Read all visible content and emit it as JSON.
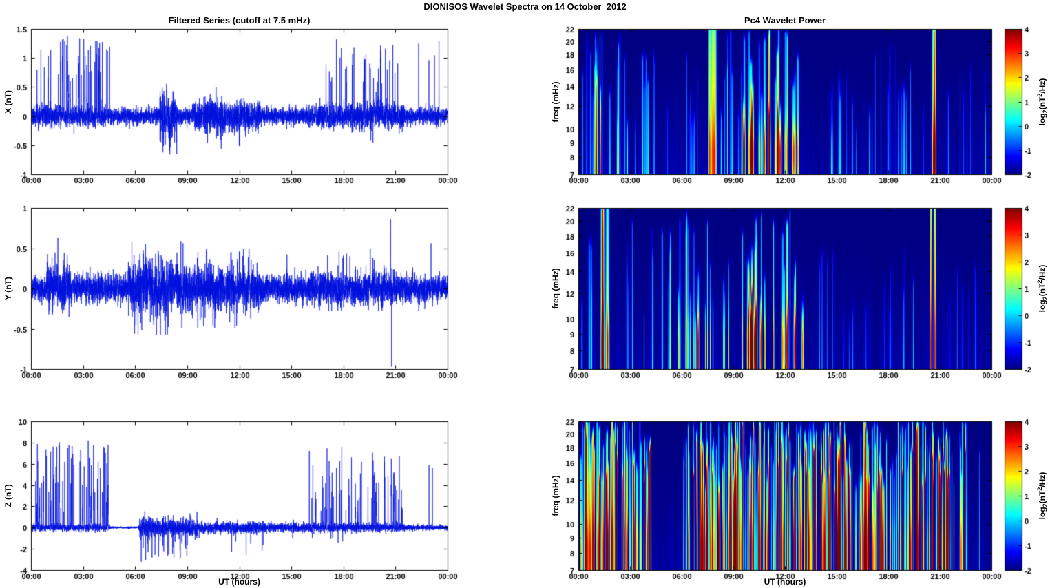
{
  "figure": {
    "suptitle": "DIONISOS Wavelet Spectra on 14 October  2012",
    "colorbar_label": {
      "p1": "log",
      "sub": "2",
      "p2": "(nT",
      "sup": "2",
      "p3": "/Hz)"
    },
    "background": "#ffffff",
    "axis_color": "#000000"
  },
  "chart_data": [
    {
      "id": "x-filtered-series",
      "type": "line",
      "title": "Filtered Series (cutoff at 7.5 mHz)",
      "ylabel": "X (nT)",
      "xlabel": "",
      "ylim": [
        -1,
        1.5
      ],
      "yticks": [
        -1,
        -0.5,
        0,
        0.5,
        1,
        1.5
      ],
      "x_hours": [
        0,
        24
      ],
      "xtick_hours": [
        0,
        3,
        6,
        9,
        12,
        15,
        18,
        21,
        24
      ],
      "xtick_labels": [
        "00:00",
        "03:00",
        "06:00",
        "09:00",
        "12:00",
        "15:00",
        "18:00",
        "21:00",
        "00:00"
      ],
      "line_color": "#0010dd",
      "noise_base": 0.07,
      "noise_bursts": [
        {
          "t0": 0,
          "t1": 4.6,
          "std": 0.09
        },
        {
          "t0": 7.4,
          "t1": 8.4,
          "std": 0.2
        },
        {
          "t0": 9.3,
          "t1": 13.2,
          "std": 0.13
        },
        {
          "t0": 10,
          "t1": 11.3,
          "std": 0.17
        },
        {
          "t0": 16,
          "t1": 21.5,
          "std": 0.11
        }
      ],
      "quiet_segments": [],
      "spike_clusters": [
        {
          "t0": 0.25,
          "t1": 4.55,
          "rate": 11,
          "amp": [
            0.6,
            1.35
          ],
          "sign": 1
        },
        {
          "t0": 16.9,
          "t1": 21.2,
          "rate": 9,
          "amp": [
            0.55,
            1.3
          ],
          "sign": 1
        },
        {
          "t0": 22.2,
          "t1": 23.6,
          "rate": 3,
          "amp": [
            0.8,
            1.3
          ],
          "sign": 1
        },
        {
          "t0": 7.6,
          "t1": 8.2,
          "rate": 5,
          "amp": [
            0.35,
            0.65
          ],
          "sign": -1
        },
        {
          "t0": 11.9,
          "t1": 12.6,
          "rate": 4,
          "amp": [
            0.3,
            0.6
          ],
          "sign": -1
        },
        {
          "t0": 19.3,
          "t1": 20,
          "rate": 3,
          "amp": [
            0.4,
            0.75
          ],
          "sign": -1
        }
      ],
      "events": [
        {
          "t": 8.0,
          "amp": -0.66
        },
        {
          "t": 17.6,
          "amp": 1.32
        },
        {
          "t": 2.1,
          "amp": 1.38
        }
      ]
    },
    {
      "id": "y-filtered-series",
      "type": "line",
      "title": "",
      "ylabel": "Y (nT)",
      "xlabel": "",
      "ylim": [
        -1,
        1
      ],
      "yticks": [
        -1,
        -0.5,
        0,
        0.5,
        1
      ],
      "x_hours": [
        0,
        24
      ],
      "xtick_hours": [
        0,
        3,
        6,
        9,
        12,
        15,
        18,
        21,
        24
      ],
      "xtick_labels": [
        "00:00",
        "03:00",
        "06:00",
        "09:00",
        "12:00",
        "15:00",
        "18:00",
        "21:00",
        "00:00"
      ],
      "line_color": "#0010dd",
      "noise_base": 0.08,
      "noise_bursts": [
        {
          "t0": 0.9,
          "t1": 2.3,
          "std": 0.13
        },
        {
          "t0": 5.6,
          "t1": 9,
          "std": 0.16
        },
        {
          "t0": 9,
          "t1": 13.2,
          "std": 0.13
        },
        {
          "t0": 16,
          "t1": 21,
          "std": 0.1
        }
      ],
      "quiet_segments": [],
      "spike_clusters": [
        {
          "t0": 5.8,
          "t1": 8.8,
          "rate": 6,
          "amp": [
            0.3,
            0.62
          ],
          "sign": 1
        },
        {
          "t0": 5.8,
          "t1": 8.8,
          "rate": 5,
          "amp": [
            0.3,
            0.58
          ],
          "sign": -1
        },
        {
          "t0": 1.2,
          "t1": 2.1,
          "rate": 3,
          "amp": [
            0.35,
            0.62
          ],
          "sign": 1
        },
        {
          "t0": 9.5,
          "t1": 12.8,
          "rate": 5,
          "amp": [
            0.3,
            0.55
          ],
          "sign": 1
        },
        {
          "t0": 9.5,
          "t1": 12.8,
          "rate": 3,
          "amp": [
            0.3,
            0.5
          ],
          "sign": -1
        },
        {
          "t0": 17,
          "t1": 20,
          "rate": 3,
          "amp": [
            0.3,
            0.5
          ],
          "sign": 1
        }
      ],
      "events": [
        {
          "t": 20.72,
          "amp": 0.86
        },
        {
          "t": 20.78,
          "amp": -0.97
        },
        {
          "t": 23.05,
          "amp": 0.56
        },
        {
          "t": 14.75,
          "amp": 0.42
        },
        {
          "t": 1.55,
          "amp": 0.63
        }
      ]
    },
    {
      "id": "z-filtered-series",
      "type": "line",
      "title": "",
      "ylabel": "Z (nT)",
      "xlabel": "UT (hours)",
      "ylim": [
        -4,
        10
      ],
      "yticks": [
        -4,
        -2,
        0,
        2,
        4,
        6,
        8,
        10
      ],
      "x_hours": [
        0,
        24
      ],
      "xtick_hours": [
        0,
        3,
        6,
        9,
        12,
        15,
        18,
        21,
        24
      ],
      "xtick_labels": [
        "00:00",
        "03:00",
        "06:00",
        "09:00",
        "12:00",
        "15:00",
        "18:00",
        "21:00",
        "00:00"
      ],
      "line_color": "#0010dd",
      "noise_base": 0.13,
      "noise_bursts": [
        {
          "t0": 0,
          "t1": 4.5,
          "std": 0.17
        },
        {
          "t0": 6.25,
          "t1": 9.6,
          "std": 0.45
        },
        {
          "t0": 9.6,
          "t1": 13.5,
          "std": 0.28
        },
        {
          "t0": 13.5,
          "t1": 21.5,
          "std": 0.22
        }
      ],
      "quiet_segments": [
        {
          "t0": 4.55,
          "t1": 6.2,
          "std": 0.05
        }
      ],
      "spike_clusters": [
        {
          "t0": 0.2,
          "t1": 4.45,
          "rate": 13,
          "amp": [
            3.5,
            8.2
          ],
          "sign": 1
        },
        {
          "t0": 0.2,
          "t1": 4.45,
          "rate": 4,
          "amp": [
            1.5,
            3.4
          ],
          "sign": 1
        },
        {
          "t0": 15.9,
          "t1": 21.4,
          "rate": 8,
          "amp": [
            3.5,
            7.6
          ],
          "sign": 1
        },
        {
          "t0": 15.9,
          "t1": 21.4,
          "rate": 4,
          "amp": [
            1.5,
            3.4
          ],
          "sign": 1
        },
        {
          "t0": 22.4,
          "t1": 23.2,
          "rate": 3,
          "amp": [
            5.5,
            7.3
          ],
          "sign": 1
        },
        {
          "t0": 6.3,
          "t1": 9.5,
          "rate": 7,
          "amp": [
            1.2,
            3.1
          ],
          "sign": -1
        },
        {
          "t0": 11.5,
          "t1": 13.5,
          "rate": 3,
          "amp": [
            1,
            2.6
          ],
          "sign": -1
        },
        {
          "t0": 15,
          "t1": 18,
          "rate": 2,
          "amp": [
            0.8,
            1.6
          ],
          "sign": -1
        }
      ],
      "events": [
        {
          "t": 6.35,
          "amp": -3.2
        },
        {
          "t": 8.6,
          "amp": -2.9
        },
        {
          "t": 12.4,
          "amp": -2.6
        }
      ]
    },
    {
      "id": "x-wavelet-power",
      "type": "heatmap",
      "title": "Pc4 Wavelet Power",
      "ylabel": "freq (mHz)",
      "xlabel": "",
      "yscale": "log",
      "ylim": [
        7,
        22
      ],
      "yticks": [
        7,
        8,
        9,
        10,
        12,
        14,
        16,
        18,
        20,
        22
      ],
      "x_hours": [
        0,
        24
      ],
      "xtick_hours": [
        0,
        3,
        6,
        9,
        12,
        15,
        18,
        21,
        24
      ],
      "xtick_labels": [
        "00:00",
        "03:00",
        "06:00",
        "09:00",
        "12:00",
        "15:00",
        "18:00",
        "21:00",
        "00:00"
      ],
      "clim": [
        -2,
        4
      ],
      "colorbar_ticks": [
        4,
        3,
        2,
        1,
        0,
        -1,
        -2
      ],
      "colormap": "jet",
      "streak_segments": [
        {
          "t0": 0.1,
          "t1": 4.6,
          "count": 30,
          "amp": [
            1.2,
            3.0
          ],
          "fmax": [
            9,
            21
          ],
          "width": [
            0.015,
            0.05
          ]
        },
        {
          "t0": 4.8,
          "t1": 7.3,
          "count": 9,
          "amp": [
            1.0,
            2.2
          ],
          "fmax": [
            9,
            18
          ],
          "width": [
            0.015,
            0.04
          ]
        },
        {
          "t0": 7.55,
          "t1": 7.95,
          "count": 3,
          "amp": [
            3.6,
            4.4
          ],
          "fmax": [
            21,
            22
          ],
          "width": [
            0.05,
            0.1
          ],
          "lowboost": 0.8
        },
        {
          "t0": 8.1,
          "t1": 9.6,
          "count": 9,
          "amp": [
            1.2,
            2.6
          ],
          "fmax": [
            10,
            21
          ],
          "width": [
            0.015,
            0.05
          ]
        },
        {
          "t0": 9.6,
          "t1": 12.9,
          "count": 26,
          "amp": [
            1.8,
            3.6
          ],
          "fmax": [
            9,
            22
          ],
          "width": [
            0.02,
            0.07
          ],
          "lowboost": 2.2
        },
        {
          "t0": 13.2,
          "t1": 16.2,
          "count": 10,
          "amp": [
            1.0,
            2.4
          ],
          "fmax": [
            8,
            15
          ],
          "width": [
            0.015,
            0.04
          ]
        },
        {
          "t0": 16.2,
          "t1": 20.2,
          "count": 16,
          "amp": [
            1.0,
            2.4
          ],
          "fmax": [
            9,
            20
          ],
          "width": [
            0.015,
            0.045
          ]
        },
        {
          "t0": 20.35,
          "t1": 20.75,
          "count": 2,
          "amp": [
            3.6,
            4.6
          ],
          "fmax": [
            21,
            22
          ],
          "width": [
            0.05,
            0.09
          ],
          "lowboost": 1.5
        },
        {
          "t0": 21.1,
          "t1": 23.9,
          "count": 8,
          "amp": [
            0.8,
            1.8
          ],
          "fmax": [
            9,
            16
          ],
          "width": [
            0.015,
            0.04
          ]
        }
      ]
    },
    {
      "id": "y-wavelet-power",
      "type": "heatmap",
      "title": "",
      "ylabel": "freq (mHz)",
      "xlabel": "",
      "yscale": "log",
      "ylim": [
        7,
        22
      ],
      "yticks": [
        7,
        8,
        9,
        10,
        12,
        14,
        16,
        18,
        20,
        22
      ],
      "x_hours": [
        0,
        24
      ],
      "xtick_hours": [
        0,
        3,
        6,
        9,
        12,
        15,
        18,
        21,
        24
      ],
      "xtick_labels": [
        "00:00",
        "03:00",
        "06:00",
        "09:00",
        "12:00",
        "15:00",
        "18:00",
        "21:00",
        "00:00"
      ],
      "clim": [
        -2,
        4
      ],
      "colorbar_ticks": [
        4,
        3,
        2,
        1,
        0,
        -1,
        -2
      ],
      "colormap": "jet",
      "streak_segments": [
        {
          "t0": 0.15,
          "t1": 1.1,
          "count": 6,
          "amp": [
            1.0,
            2.2
          ],
          "fmax": [
            10,
            18
          ],
          "width": [
            0.015,
            0.04
          ]
        },
        {
          "t0": 1.35,
          "t1": 1.75,
          "count": 3,
          "amp": [
            3.8,
            4.8
          ],
          "fmax": [
            21,
            22
          ],
          "width": [
            0.05,
            0.1
          ],
          "lowboost": 1.8
        },
        {
          "t0": 2.2,
          "t1": 5.5,
          "count": 13,
          "amp": [
            1.0,
            2.6
          ],
          "fmax": [
            9,
            19
          ],
          "width": [
            0.015,
            0.05
          ]
        },
        {
          "t0": 5.8,
          "t1": 9.2,
          "count": 18,
          "amp": [
            1.6,
            3.2
          ],
          "fmax": [
            9,
            20
          ],
          "width": [
            0.02,
            0.05
          ],
          "lowboost": 1.2
        },
        {
          "t0": 9.5,
          "t1": 13.1,
          "count": 24,
          "amp": [
            1.8,
            3.6
          ],
          "fmax": [
            9,
            22
          ],
          "width": [
            0.02,
            0.06
          ],
          "lowboost": 2.6
        },
        {
          "t0": 13.6,
          "t1": 19.6,
          "count": 14,
          "amp": [
            0.8,
            2.0
          ],
          "fmax": [
            8,
            16
          ],
          "width": [
            0.015,
            0.04
          ]
        },
        {
          "t0": 20.45,
          "t1": 20.75,
          "count": 2,
          "amp": [
            5.0,
            5.8
          ],
          "fmax": [
            22,
            22
          ],
          "width": [
            0.04,
            0.07
          ],
          "lowboost": 1.0
        },
        {
          "t0": 21.3,
          "t1": 23.6,
          "count": 6,
          "amp": [
            0.8,
            1.6
          ],
          "fmax": [
            9,
            14
          ],
          "width": [
            0.015,
            0.04
          ]
        }
      ]
    },
    {
      "id": "z-wavelet-power",
      "type": "heatmap",
      "title": "",
      "ylabel": "freq (mHz)",
      "xlabel": "UT (hours)",
      "yscale": "log",
      "ylim": [
        7,
        22
      ],
      "yticks": [
        7,
        8,
        9,
        10,
        12,
        14,
        16,
        18,
        20,
        22
      ],
      "x_hours": [
        0,
        24
      ],
      "xtick_hours": [
        0,
        3,
        6,
        9,
        12,
        15,
        18,
        21,
        24
      ],
      "xtick_labels": [
        "00:00",
        "03:00",
        "06:00",
        "09:00",
        "12:00",
        "15:00",
        "18:00",
        "21:00",
        "00:00"
      ],
      "clim": [
        -2,
        4
      ],
      "colorbar_ticks": [
        4,
        3,
        2,
        1,
        0,
        -1,
        -2
      ],
      "colormap": "jet",
      "streak_segments": [
        {
          "t0": 0.05,
          "t1": 4.25,
          "count": 75,
          "amp": [
            2.5,
            5.6
          ],
          "fmax": [
            13,
            22
          ],
          "width": [
            0.012,
            0.04
          ],
          "lowboost": 0.8
        },
        {
          "t0": 6.05,
          "t1": 22.6,
          "count": 300,
          "amp": [
            2.2,
            5.6
          ],
          "fmax": [
            12,
            22
          ],
          "width": [
            0.012,
            0.04
          ],
          "lowboost": 0.8
        },
        {
          "t0": 23.3,
          "t1": 23.5,
          "count": 1,
          "amp": [
            1.5,
            2.5
          ],
          "fmax": [
            16,
            20
          ],
          "width": [
            0.02,
            0.03
          ]
        }
      ]
    }
  ]
}
